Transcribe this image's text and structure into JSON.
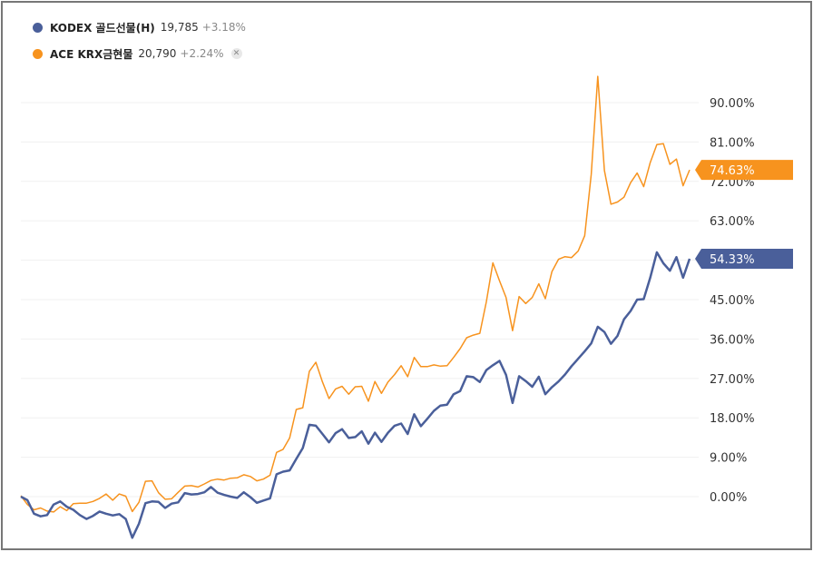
{
  "chart_data": {
    "type": "line",
    "title": "",
    "xlabel": "",
    "ylabel": "",
    "ylim": [
      -7,
      97
    ],
    "y_ticks": [
      "90.00%",
      "81.00%",
      "72.00%",
      "63.00%",
      "54.00%",
      "45.00%",
      "36.00%",
      "27.00%",
      "18.00%",
      "9.00%",
      "0.00%"
    ],
    "y_tick_values": [
      90,
      81,
      72,
      63,
      54,
      45,
      36,
      27,
      18,
      9,
      0
    ],
    "grid": true,
    "legend_position": "top-left",
    "series": [
      {
        "name": "ACE KRX금현물",
        "price": "20,790",
        "change": "+2.24%",
        "color": "#f7931e",
        "last_label": "74.63%",
        "values": [
          0.2,
          -1.8,
          -3.0,
          -2.6,
          -3.3,
          -3.5,
          -2.3,
          -3.2,
          -1.6,
          -1.5,
          -1.5,
          -1.1,
          -0.4,
          0.6,
          -0.8,
          0.6,
          0.1,
          -3.4,
          -1.3,
          3.5,
          3.6,
          0.9,
          -0.6,
          -0.5,
          1.0,
          2.4,
          2.5,
          2.2,
          2.9,
          3.7,
          4.0,
          3.8,
          4.2,
          4.3,
          5.0,
          4.6,
          3.6,
          4.0,
          4.9,
          10.1,
          10.8,
          13.4,
          19.9,
          20.3,
          28.6,
          30.7,
          26.2,
          22.4,
          24.6,
          25.2,
          23.4,
          25.1,
          25.2,
          21.8,
          26.3,
          23.6,
          26.2,
          27.9,
          29.9,
          27.4,
          31.8,
          29.7,
          29.7,
          30.1,
          29.8,
          29.9,
          31.8,
          33.8,
          36.3,
          36.9,
          37.3,
          44.5,
          53.4,
          49.3,
          45.5,
          37.9,
          45.7,
          44.1,
          45.5,
          48.6,
          45.2,
          51.4,
          54.2,
          54.8,
          54.6,
          56.1,
          59.6,
          73.6,
          96.0,
          74.5,
          66.8,
          67.3,
          68.4,
          71.7,
          73.9,
          70.8,
          76.3,
          80.4,
          80.6,
          75.9,
          77.1,
          71.0,
          74.63
        ]
      },
      {
        "name": "KODEX 골드선물(H)",
        "price": "19,785",
        "change": "+3.18%",
        "color": "#4a5f9a",
        "last_label": "54.33%",
        "values": [
          0.0,
          -0.8,
          -3.9,
          -4.5,
          -4.2,
          -1.8,
          -1.1,
          -2.3,
          -3.0,
          -4.2,
          -5.1,
          -4.4,
          -3.4,
          -3.9,
          -4.3,
          -4.0,
          -5.1,
          -9.4,
          -6.2,
          -1.5,
          -1.1,
          -1.2,
          -2.6,
          -1.6,
          -1.3,
          0.8,
          0.5,
          0.6,
          1.0,
          2.2,
          0.9,
          0.4,
          0.0,
          -0.3,
          1.0,
          -0.1,
          -1.4,
          -0.9,
          -0.4,
          5.1,
          5.7,
          6.0,
          8.6,
          11.1,
          16.4,
          16.2,
          14.3,
          12.4,
          14.5,
          15.4,
          13.4,
          13.6,
          14.9,
          12.1,
          14.6,
          12.5,
          14.6,
          16.2,
          16.7,
          14.3,
          18.8,
          16.1,
          17.8,
          19.6,
          20.8,
          21.0,
          23.4,
          24.1,
          27.5,
          27.3,
          26.2,
          28.9,
          30.0,
          31.0,
          27.8,
          21.4,
          27.5,
          26.4,
          25.1,
          27.4,
          23.4,
          25.0,
          26.3,
          27.9,
          29.8,
          31.5,
          33.2,
          35.0,
          38.8,
          37.6,
          34.9,
          36.7,
          40.5,
          42.4,
          45.0,
          45.1,
          50.0,
          55.8,
          53.3,
          51.6,
          54.7,
          50.0,
          54.33
        ]
      }
    ]
  }
}
